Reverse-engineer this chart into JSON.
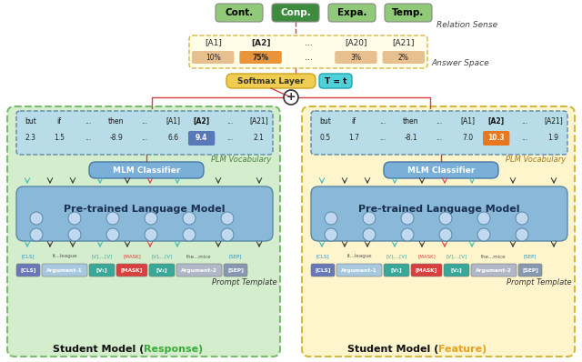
{
  "bg_color": "#ffffff",
  "relation_labels": [
    "Cont.",
    "Conp.",
    "Expa.",
    "Temp."
  ],
  "relation_colors": [
    "#90c978",
    "#3d8c3d",
    "#90c978",
    "#90c978"
  ],
  "relation_text_colors": [
    "#000000",
    "#ffffff",
    "#000000",
    "#000000"
  ],
  "relation_sense_text": "Relation Sense",
  "answer_labels": [
    "[A1]",
    "[A2]",
    "...",
    "[A20]",
    "[A21]"
  ],
  "answer_pcts": [
    "10%",
    "75%",
    "...",
    "3%",
    "2%"
  ],
  "answer_bar_colors": [
    "#e8c090",
    "#e8943a",
    "#e8c090",
    "#e8c090",
    "#e8c090"
  ],
  "answer_space_text": "Answer Space",
  "softmax_text": "Softmax Layer",
  "t_text": "T = t",
  "plm_vocab_left": [
    "but",
    "if",
    "...",
    "then",
    "...",
    "[A1]",
    "[A2]",
    "...",
    "[A21]"
  ],
  "plm_scores_left": [
    "2.3",
    "1.5",
    "...",
    "-8.9",
    "...",
    "6.6",
    "9.4",
    "...",
    "2.1"
  ],
  "plm_vocab_right": [
    "but",
    "if",
    "...",
    "then",
    "...",
    "[A1]",
    "[A2]",
    "...",
    "[A21]"
  ],
  "plm_scores_right": [
    "0.5",
    "1.7",
    "...",
    "-8.1",
    "...",
    "7.0",
    "10.3",
    "...",
    "1.9"
  ],
  "left_box_bg": "#d4edcc",
  "left_box_border": "#7abd6e",
  "right_box_bg": "#fef5cc",
  "right_box_border": "#d4b840",
  "plm_bg": "#8ab8d8",
  "plm_border": "#5a88a8",
  "mlm_bg": "#7ab0d8",
  "vocab_bg_left": "#b8dce8",
  "vocab_bg_right": "#b8dce8",
  "score_highlight_left_bg": "#6090c8",
  "score_highlight_right_bg": "#e87820",
  "prompt_cls_color": "#6878b8",
  "prompt_arg_color": "#a8c8e0",
  "prompt_v_color": "#38a898",
  "prompt_mask_color": "#d84040",
  "prompt_sep_color": "#8898b0",
  "student_left_color": "#3daa3d",
  "student_right_color": "#e8a020",
  "red_line": "#d84040",
  "arrow_teal": "#40b8b8",
  "arrow_dark": "#333333"
}
